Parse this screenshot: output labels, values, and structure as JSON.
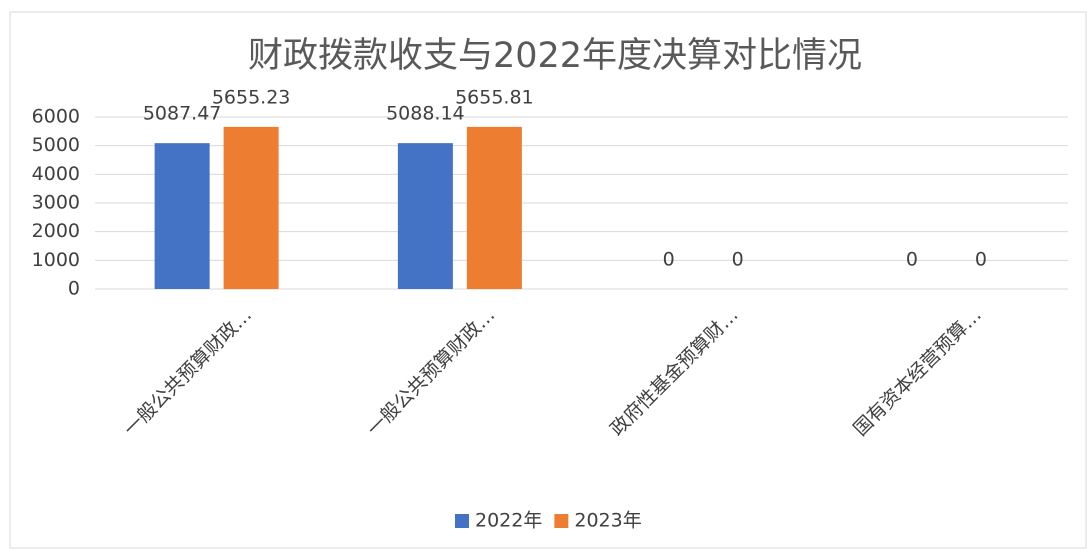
{
  "chart_data": {
    "type": "bar",
    "title": "财政拨款收支与2022年度决算对比情况",
    "categories": [
      "一般公共预算财政…",
      "一般公共预算财政…",
      "政府性基金预算财…",
      "国有资本经营预算…"
    ],
    "series": [
      {
        "name": "2022年",
        "color": "#4472c4",
        "values": [
          5087.47,
          5088.14,
          0,
          0
        ]
      },
      {
        "name": "2023年",
        "color": "#ed7d31",
        "values": [
          5655.23,
          5655.81,
          0,
          0
        ]
      }
    ],
    "ylim": [
      0,
      6000
    ],
    "yticks": [
      0,
      1000,
      2000,
      3000,
      4000,
      5000,
      6000
    ],
    "grid": true,
    "legend": "bottom"
  }
}
